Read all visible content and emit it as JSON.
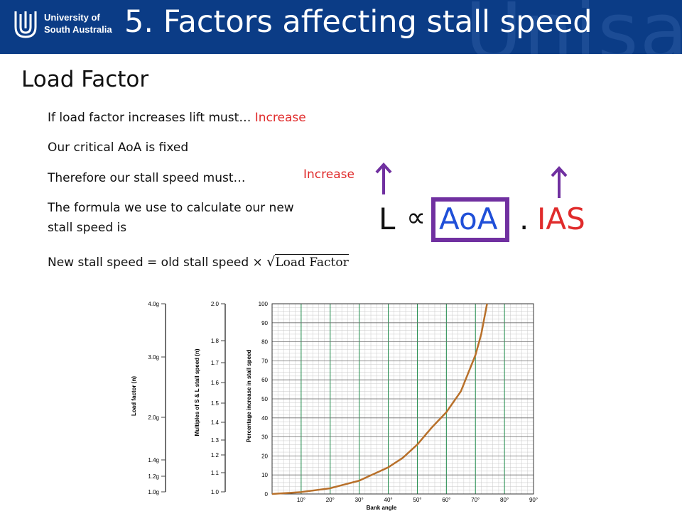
{
  "header": {
    "logo_line1": "University of",
    "logo_line2": "South Australia",
    "title": "5. Factors affecting stall speed",
    "watermark": "Unisa"
  },
  "subtitle": "Load Factor",
  "bullets": {
    "load_factor_q": "If load factor increases lift must…",
    "load_factor_a": "Increase",
    "critical_aoa": "Our critical AoA is fixed",
    "stall_speed_q": "Therefore our stall speed must…",
    "stall_speed_a": "Increase",
    "formula_intro_1": "The formula we use to calculate our new",
    "formula_intro_2": "stall speed is",
    "stall_formula_text": "New stall speed = old stall speed ×",
    "stall_formula_sqrt": "√",
    "stall_formula_radicand": "Load Factor"
  },
  "lift_formula": {
    "L": "L",
    "prop": "∝",
    "aoa": "AoA",
    "dot": ".",
    "ias": "IAS"
  },
  "colors": {
    "header_bg": "#0b3c86",
    "red": "#e02b2b",
    "blue": "#1f4fd8",
    "purple": "#7030a0",
    "curve": "#b8702a",
    "grid_green": "#1d8a4a"
  },
  "chart_data": {
    "type": "line",
    "xlabel": "Bank angle",
    "ylabel": "Percentage increase in stall speed",
    "x_ticks": [
      "10°",
      "20°",
      "30°",
      "40°",
      "50°",
      "60°",
      "70°",
      "80°",
      "90°"
    ],
    "y_ticks": [
      "0",
      "10",
      "20",
      "30",
      "40",
      "50",
      "60",
      "70",
      "80",
      "90",
      "100"
    ],
    "xlim": [
      0,
      90
    ],
    "ylim": [
      0,
      100
    ],
    "grid": true,
    "x": [
      0,
      10,
      20,
      30,
      40,
      45,
      50,
      55,
      60,
      65,
      70,
      72,
      74
    ],
    "y": [
      0,
      1,
      3,
      7,
      14,
      19,
      26,
      35,
      43,
      54,
      73,
      84,
      100
    ],
    "load_factor_scale": {
      "label": "Load factor (n)",
      "ticks": [
        "4.0g",
        "3.0g",
        "2.0g",
        "1.4g",
        "1.2g",
        "1.0g"
      ]
    },
    "multiples_scale": {
      "label": "Multiples of S & L stall speed (n)",
      "ticks": [
        "2.0",
        "1.8",
        "1.7",
        "1.6",
        "1.5",
        "1.4",
        "1.3",
        "1.2",
        "1.1",
        "1.0"
      ]
    }
  }
}
